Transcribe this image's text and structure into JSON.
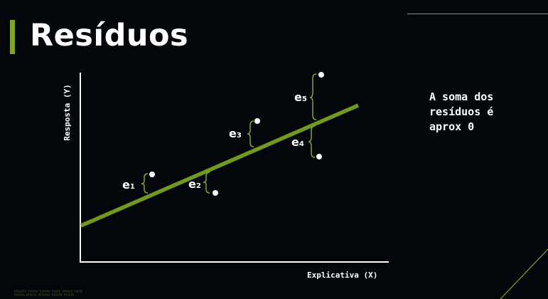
{
  "title": "Resíduos",
  "side_note": "A soma dos\nresíduos é\naprox 0",
  "footer_lines": [
    "▯▯▯▯▯▯▯ ▯▯▯▯▯▯ ▯▯▯▯▯▯ ▯▯▯▯▯ ▯▯▯▯▯▯ ▯▯▯▯▯",
    "▯▯▯▯▯▯ ▯▯▯▯▯▯ ▯▯▯▯▯▯▯ ▯▯▯▯▯▯ ▯▯▯▯▯▯"
  ],
  "colors": {
    "background": "#03070c",
    "accent": "#7fa52a",
    "text": "#ffffff"
  },
  "chart_data": {
    "type": "scatter",
    "xlabel": "Explicativa (X)",
    "ylabel": "Resposta (Y)",
    "residual_labels": [
      {
        "letter": "e",
        "sub": "1"
      },
      {
        "letter": "e",
        "sub": "2"
      },
      {
        "letter": "e",
        "sub": "3"
      },
      {
        "letter": "e",
        "sub": "4"
      },
      {
        "letter": "e",
        "sub": "5"
      }
    ]
  }
}
